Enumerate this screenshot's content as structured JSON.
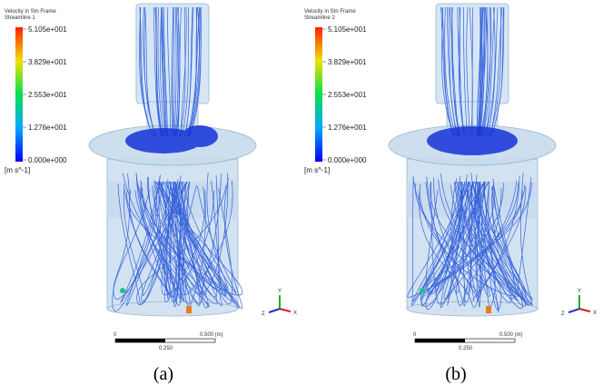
{
  "panels": [
    {
      "legend": {
        "title": "Velocity in Stn Frame",
        "subtitle": "Streamline 1",
        "ticks": [
          "5.105e+001",
          "3.829e+001",
          "2.553e+001",
          "1.276e+001",
          "0.000e+000"
        ],
        "unit": "[m s^-1]"
      },
      "scale": {
        "start": "0",
        "end": "0.500 (m)",
        "mid": "0.250"
      },
      "axes": {
        "y": "Y",
        "x": "X",
        "z": "Z"
      },
      "caption": "(a)"
    },
    {
      "legend": {
        "title": "Velocity in Stn Frame",
        "subtitle": "Streamline 2",
        "ticks": [
          "5.105e+001",
          "3.829e+001",
          "2.553e+001",
          "1.276e+001",
          "0.000e+000"
        ],
        "unit": "[m s^-1]"
      },
      "scale": {
        "start": "0",
        "end": "0.500 (m)",
        "mid": "0.250"
      },
      "axes": {
        "y": "Y",
        "x": "X",
        "z": "Z"
      },
      "caption": "(b)"
    }
  ]
}
